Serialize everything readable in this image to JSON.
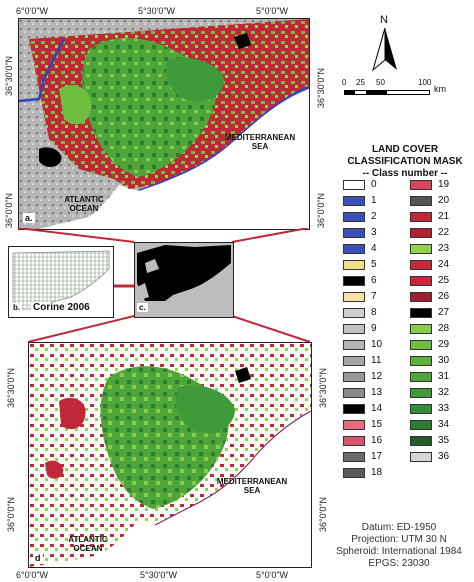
{
  "coords": {
    "top_lon": [
      "6°0'0\"W",
      "5°30'0\"W",
      "5°0'0\"W"
    ],
    "top_lat": [
      "36°30'0\"N",
      "36°0'0\"N"
    ],
    "bottom_lon": [
      "6°0'0\"W",
      "5°30'0\"W",
      "5°0'0\"W"
    ],
    "bottom_lat": [
      "36°30'0\"N",
      "36°0'0\"N"
    ]
  },
  "panels": {
    "a": {
      "letter": "a.",
      "sea1": "MEDITERRANEAN\nSEA",
      "ocean": "ATLANTIC\nOCEAN"
    },
    "b": {
      "letter": "b.",
      "caption": "Corine 2006"
    },
    "c": {
      "letter": "c."
    },
    "d": {
      "letter": "d",
      "sea1": "MEDITERRANEAN\nSEA",
      "ocean": "ATLANTIC\nOCEAN"
    }
  },
  "north": {
    "label": "N"
  },
  "scale": {
    "ticks": [
      "0",
      "25",
      "50",
      "100"
    ],
    "unit": "km"
  },
  "legend": {
    "title_1": "LAND COVER",
    "title_2": "CLASSIFICATION MASK",
    "title_3": "-- Class number --",
    "classes": [
      {
        "n": "0",
        "color": "#ffffff"
      },
      {
        "n": "1",
        "color": "#3a4fb8"
      },
      {
        "n": "2",
        "color": "#3a4fb8"
      },
      {
        "n": "3",
        "color": "#3a4fb8"
      },
      {
        "n": "4",
        "color": "#3a4fb8"
      },
      {
        "n": "5",
        "color": "#f3dc8a"
      },
      {
        "n": "6",
        "color": "#000000"
      },
      {
        "n": "7",
        "color": "#f6e2a6"
      },
      {
        "n": "8",
        "color": "#d0d0d0"
      },
      {
        "n": "9",
        "color": "#c2c2c2"
      },
      {
        "n": "10",
        "color": "#b4b4b4"
      },
      {
        "n": "11",
        "color": "#a6a6a6"
      },
      {
        "n": "12",
        "color": "#989898"
      },
      {
        "n": "13",
        "color": "#8a8a8a"
      },
      {
        "n": "14",
        "color": "#000000"
      },
      {
        "n": "15",
        "color": "#e76b7a"
      },
      {
        "n": "16",
        "color": "#d9546a"
      },
      {
        "n": "17",
        "color": "#6b6b6b"
      },
      {
        "n": "18",
        "color": "#5a5a5a"
      },
      {
        "n": "19",
        "color": "#d9455a"
      },
      {
        "n": "20",
        "color": "#555555"
      },
      {
        "n": "21",
        "color": "#c0283a"
      },
      {
        "n": "22",
        "color": "#b22234"
      },
      {
        "n": "23",
        "color": "#8fd44a"
      },
      {
        "n": "24",
        "color": "#c42a3a"
      },
      {
        "n": "25",
        "color": "#c8283a"
      },
      {
        "n": "26",
        "color": "#9c2030"
      },
      {
        "n": "27",
        "color": "#000000"
      },
      {
        "n": "28",
        "color": "#86cc46"
      },
      {
        "n": "29",
        "color": "#6fbf3e"
      },
      {
        "n": "30",
        "color": "#5cb038"
      },
      {
        "n": "31",
        "color": "#4ea53a"
      },
      {
        "n": "32",
        "color": "#3f9a3a"
      },
      {
        "n": "33",
        "color": "#348c36"
      },
      {
        "n": "34",
        "color": "#2c7d32"
      },
      {
        "n": "35",
        "color": "#245c2c"
      },
      {
        "n": "36",
        "color": "#d6d6d6"
      }
    ]
  },
  "info": {
    "datum": "Datum: ED-1950",
    "projection": "Projection: UTM 30 N",
    "spheroid": "Spheroid: International 1984",
    "epsg": "EPGS: 23030"
  },
  "colors": {
    "green": "#4caf3a",
    "darkgreen": "#2a7a2a",
    "red": "#c0283a",
    "blue": "#2f45c0",
    "grey": "#b5b5b5"
  }
}
